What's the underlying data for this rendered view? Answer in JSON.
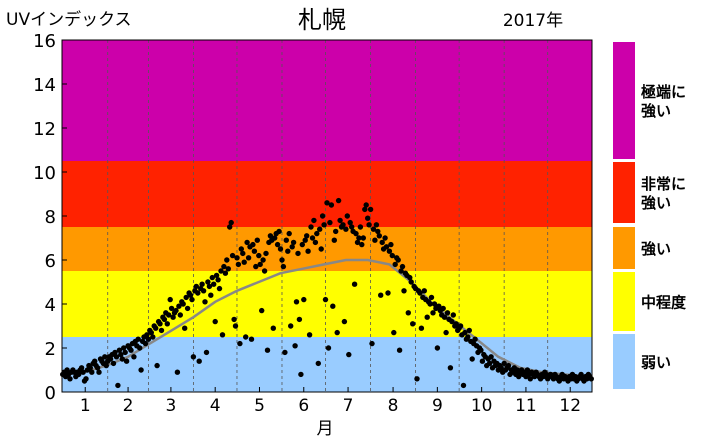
{
  "chart_data": {
    "type": "scatter",
    "title": "札幌",
    "ylabel": "UVインデックス",
    "year_label": "2017年",
    "xlabel": "月",
    "ylim": [
      0,
      16
    ],
    "y_ticks": [
      "0",
      "2",
      "4",
      "6",
      "8",
      "10",
      "12",
      "14",
      "16"
    ],
    "x_categories": [
      "1",
      "2",
      "3",
      "4",
      "5",
      "6",
      "7",
      "8",
      "9",
      "10",
      "11",
      "12"
    ],
    "bands": [
      {
        "from": 0,
        "to": 2.5,
        "color": "#99ccff",
        "label": "弱い"
      },
      {
        "from": 2.5,
        "to": 5.5,
        "color": "#ffff00",
        "label": "中程度"
      },
      {
        "from": 5.5,
        "to": 7.5,
        "color": "#ff9900",
        "label": "強い"
      },
      {
        "from": 7.5,
        "to": 10.5,
        "color": "#ff2200",
        "label": "非常に強い"
      },
      {
        "from": 10.5,
        "to": 16,
        "color": "#cc00aa",
        "label": "極端に強い"
      }
    ],
    "legend": [
      {
        "lines": [
          "極端に",
          "強い"
        ],
        "color": "#cc00aa"
      },
      {
        "lines": [
          "非常に",
          "強い"
        ],
        "color": "#ff2200"
      },
      {
        "lines": [
          "強い"
        ],
        "color": "#ff9900"
      },
      {
        "lines": [
          "中程度"
        ],
        "color": "#ffff00"
      },
      {
        "lines": [
          "弱い"
        ],
        "color": "#99ccff"
      }
    ],
    "grid": "vertical dashed at month boundaries",
    "series": [
      {
        "kind": "daily-scatter",
        "color": "#000000",
        "x_day": [
          1,
          2,
          3,
          4,
          5,
          6,
          7,
          8,
          9,
          10,
          11,
          12,
          13,
          14,
          15,
          16,
          17,
          18,
          19,
          20,
          21,
          22,
          23,
          24,
          25,
          26,
          27,
          28,
          29,
          30,
          31,
          32,
          33,
          34,
          35,
          36,
          37,
          38,
          39,
          40,
          41,
          42,
          43,
          44,
          45,
          46,
          47,
          48,
          49,
          50,
          51,
          52,
          53,
          54,
          55,
          56,
          57,
          58,
          59,
          60,
          61,
          62,
          63,
          64,
          65,
          66,
          67,
          68,
          69,
          70,
          71,
          72,
          73,
          74,
          75,
          76,
          77,
          78,
          79,
          80,
          81,
          82,
          83,
          84,
          85,
          86,
          87,
          88,
          89,
          90,
          91,
          92,
          93,
          94,
          95,
          96,
          97,
          98,
          99,
          100,
          101,
          102,
          103,
          104,
          105,
          106,
          107,
          108,
          109,
          110,
          111,
          112,
          113,
          114,
          115,
          116,
          117,
          118,
          119,
          120,
          121,
          122,
          123,
          124,
          125,
          126,
          127,
          128,
          129,
          130,
          131,
          132,
          133,
          134,
          135,
          136,
          137,
          138,
          139,
          140,
          141,
          142,
          143,
          144,
          145,
          146,
          147,
          148,
          149,
          150,
          151,
          152,
          153,
          154,
          155,
          156,
          157,
          158,
          159,
          160,
          161,
          162,
          163,
          164,
          165,
          166,
          167,
          168,
          169,
          170,
          171,
          172,
          173,
          174,
          175,
          176,
          177,
          178,
          179,
          180,
          181,
          182,
          183,
          184,
          185,
          186,
          187,
          188,
          189,
          190,
          191,
          192,
          193,
          194,
          195,
          196,
          197,
          198,
          199,
          200,
          201,
          202,
          203,
          204,
          205,
          206,
          207,
          208,
          209,
          210,
          211,
          212,
          213,
          214,
          215,
          216,
          217,
          218,
          219,
          220,
          221,
          222,
          223,
          224,
          225,
          226,
          227,
          228,
          229,
          230,
          231,
          232,
          233,
          234,
          235,
          236,
          237,
          238,
          239,
          240,
          241,
          242,
          243,
          244,
          245,
          246,
          247,
          248,
          249,
          250,
          251,
          252,
          253,
          254,
          255,
          256,
          257,
          258,
          259,
          260,
          261,
          262,
          263,
          264,
          265,
          266,
          267,
          268,
          269,
          270,
          271,
          272,
          273,
          274,
          275,
          276,
          277,
          278,
          279,
          280,
          281,
          282,
          283,
          284,
          285,
          286,
          287,
          288,
          289,
          290,
          291,
          292,
          293,
          294,
          295,
          296,
          297,
          298,
          299,
          300,
          301,
          302,
          303,
          304,
          305,
          306,
          307,
          308,
          309,
          310,
          311,
          312,
          313,
          314,
          315,
          316,
          317,
          318,
          319,
          320,
          321,
          322,
          323,
          324,
          325,
          326,
          327,
          328,
          329,
          330,
          331,
          332,
          333,
          334,
          335,
          336,
          337,
          338,
          339,
          340,
          341,
          342,
          343,
          344,
          345,
          346,
          347,
          348,
          349,
          350,
          351,
          352,
          353,
          354,
          355,
          356,
          357,
          358,
          359,
          360,
          361,
          362,
          363,
          364,
          365
        ],
        "uv": [
          0.8,
          0.9,
          0.7,
          1.0,
          0.8,
          0.6,
          0.9,
          1.0,
          0.9,
          0.7,
          0.9,
          0.8,
          1.0,
          1.1,
          0.9,
          0.5,
          0.6,
          1.0,
          1.2,
          1.1,
          0.9,
          1.3,
          1.4,
          1.2,
          1.1,
          0.9,
          1.5,
          1.4,
          1.3,
          1.6,
          1.2,
          1.4,
          1.6,
          1.5,
          1.7,
          1.3,
          1.8,
          1.6,
          0.3,
          1.9,
          1.7,
          1.5,
          2.0,
          1.8,
          1.4,
          2.1,
          2.0,
          1.9,
          2.2,
          1.6,
          2.3,
          2.1,
          2.4,
          2.0,
          1.0,
          2.3,
          2.5,
          2.2,
          2.6,
          2.4,
          2.8,
          2.7,
          2.5,
          3.0,
          2.9,
          1.2,
          3.2,
          3.1,
          2.8,
          3.4,
          3.3,
          3.6,
          3.1,
          3.5,
          4.2,
          3.8,
          3.4,
          3.6,
          3.7,
          0.9,
          3.9,
          3.5,
          4.1,
          4.0,
          2.9,
          4.3,
          3.8,
          4.5,
          4.4,
          4.2,
          1.6,
          4.6,
          4.8,
          4.5,
          1.4,
          4.7,
          4.9,
          4.6,
          4.1,
          1.8,
          5.0,
          4.8,
          4.4,
          5.2,
          4.9,
          3.2,
          5.3,
          5.1,
          4.7,
          5.5,
          2.6,
          5.7,
          5.4,
          6.0,
          5.6,
          7.5,
          7.7,
          6.2,
          3.3,
          3.0,
          6.1,
          5.8,
          2.2,
          6.5,
          6.3,
          5.9,
          2.5,
          6.8,
          6.1,
          6.6,
          2.4,
          6.7,
          6.4,
          5.7,
          6.9,
          6.2,
          5.8,
          3.7,
          6.0,
          5.5,
          6.3,
          1.9,
          6.8,
          7.1,
          6.9,
          2.9,
          7.0,
          7.2,
          6.7,
          7.3,
          6.5,
          6.0,
          5.7,
          1.8,
          6.9,
          6.4,
          7.2,
          3.0,
          6.6,
          6.8,
          2.1,
          4.1,
          6.3,
          3.3,
          0.8,
          6.7,
          4.2,
          6.9,
          7.1,
          6.4,
          2.6,
          7.5,
          7.0,
          7.8,
          6.8,
          7.2,
          1.3,
          7.4,
          6.5,
          8.0,
          7.6,
          4.2,
          8.6,
          2.0,
          7.7,
          8.5,
          3.9,
          6.9,
          7.3,
          2.7,
          8.7,
          7.8,
          7.5,
          7.6,
          3.2,
          7.4,
          8.0,
          1.7,
          7.7,
          7.5,
          7.3,
          4.9,
          7.2,
          6.8,
          7.0,
          7.5,
          6.7,
          7.0,
          8.3,
          8.5,
          7.9,
          7.6,
          8.3,
          2.2,
          7.4,
          6.9,
          7.6,
          7.3,
          7.1,
          4.4,
          6.8,
          6.5,
          7.0,
          6.6,
          4.5,
          6.4,
          6.7,
          6.2,
          2.7,
          5.8,
          6.1,
          6.0,
          1.9,
          5.5,
          5.7,
          4.6,
          5.4,
          5.3,
          3.6,
          5.2,
          5.0,
          3.1,
          4.8,
          4.7,
          0.6,
          4.6,
          4.5,
          2.9,
          4.3,
          4.6,
          4.2,
          3.4,
          4.1,
          4.0,
          4.3,
          3.6,
          4.0,
          3.8,
          2.0,
          3.9,
          3.7,
          3.5,
          3.8,
          3.4,
          2.7,
          3.6,
          3.3,
          1.1,
          3.2,
          3.5,
          3.0,
          3.1,
          2.8,
          2.9,
          3.0,
          2.6,
          0.3,
          2.7,
          2.4,
          2.5,
          2.8,
          2.3,
          1.5,
          2.2,
          2.4,
          2.1,
          1.8,
          2.0,
          1.9,
          1.4,
          1.7,
          1.6,
          1.2,
          1.5,
          1.3,
          1.6,
          1.1,
          1.4,
          1.2,
          1.3,
          1.0,
          1.2,
          1.1,
          0.9,
          1.3,
          1.0,
          1.1,
          1.2,
          0.8,
          1.0,
          0.9,
          1.1,
          0.8,
          1.0,
          0.7,
          0.9,
          1.0,
          0.8,
          0.9,
          0.7,
          1.0,
          0.8,
          0.6,
          0.9,
          0.8,
          0.7,
          0.9,
          0.8,
          0.7,
          0.6,
          0.8,
          0.7,
          0.9,
          0.8,
          0.6,
          0.7,
          0.8,
          0.7,
          0.6,
          0.8,
          0.7,
          0.6,
          0.5,
          0.7,
          0.8,
          0.6,
          0.7,
          0.6,
          0.5,
          0.7,
          0.6,
          0.8,
          0.6,
          0.7,
          0.5,
          0.6,
          0.7,
          0.8,
          0.6,
          0.5,
          0.7,
          0.6,
          0.8,
          0.7,
          0.6,
          0.5,
          0.7
        ]
      },
      {
        "kind": "smoothed-line",
        "color": "#888888",
        "x_day": [
          1,
          16,
          31,
          46,
          61,
          76,
          91,
          106,
          121,
          136,
          151,
          166,
          181,
          196,
          211,
          226,
          241,
          256,
          271,
          286,
          301,
          316,
          331,
          346,
          365
        ],
        "uv": [
          0.8,
          0.9,
          1.2,
          1.6,
          2.2,
          2.8,
          3.4,
          4.1,
          4.6,
          5.0,
          5.4,
          5.6,
          5.8,
          6.0,
          6.0,
          5.8,
          5.0,
          4.0,
          3.2,
          2.4,
          1.6,
          1.1,
          0.9,
          0.8,
          0.7
        ]
      }
    ]
  }
}
